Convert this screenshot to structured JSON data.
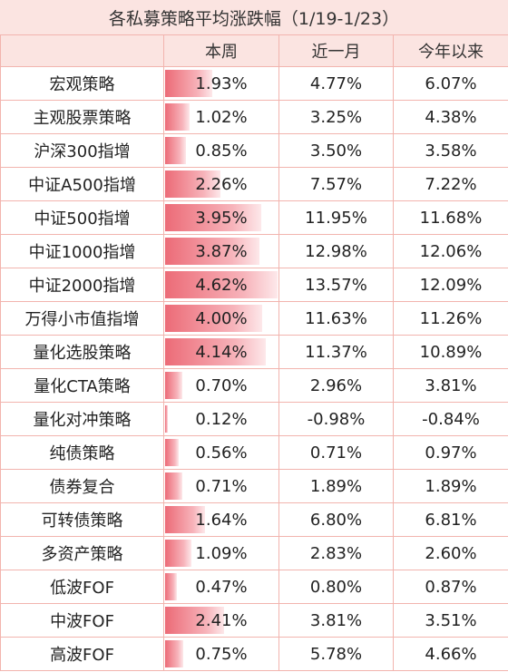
{
  "title": "各私募策略平均涨跌幅（1/19-1/23）",
  "colors": {
    "header_bg": "#fbe4e1",
    "border": "#f2b4ae",
    "bar_start": "#ec6b77",
    "bar_end": "#fde8ea"
  },
  "headers": [
    "",
    "本周",
    "近一月",
    "今年以来"
  ],
  "chart_data": {
    "type": "table",
    "title": "各私募策略平均涨跌幅（1/19-1/23）",
    "columns": [
      "",
      "本周",
      "近一月",
      "今年以来"
    ],
    "bar_column": "本周",
    "bar_max": 4.62,
    "rows": [
      {
        "name": "宏观策略",
        "week": "1.93%",
        "month": "4.77%",
        "ytd": "6.07%",
        "week_value": 1.93
      },
      {
        "name": "主观股票策略",
        "week": "1.02%",
        "month": "3.25%",
        "ytd": "4.38%",
        "week_value": 1.02
      },
      {
        "name": "沪深300指增",
        "week": "0.85%",
        "month": "3.50%",
        "ytd": "3.58%",
        "week_value": 0.85
      },
      {
        "name": "中证A500指增",
        "week": "2.26%",
        "month": "7.57%",
        "ytd": "7.22%",
        "week_value": 2.26
      },
      {
        "name": "中证500指增",
        "week": "3.95%",
        "month": "11.95%",
        "ytd": "11.68%",
        "week_value": 3.95
      },
      {
        "name": "中证1000指增",
        "week": "3.87%",
        "month": "12.98%",
        "ytd": "12.06%",
        "week_value": 3.87
      },
      {
        "name": "中证2000指增",
        "week": "4.62%",
        "month": "13.57%",
        "ytd": "12.09%",
        "week_value": 4.62
      },
      {
        "name": "万得小市值指增",
        "week": "4.00%",
        "month": "11.63%",
        "ytd": "11.26%",
        "week_value": 4.0
      },
      {
        "name": "量化选股策略",
        "week": "4.14%",
        "month": "11.37%",
        "ytd": "10.89%",
        "week_value": 4.14
      },
      {
        "name": "量化CTA策略",
        "week": "0.70%",
        "month": "2.96%",
        "ytd": "3.81%",
        "week_value": 0.7
      },
      {
        "name": "量化对冲策略",
        "week": "0.12%",
        "month": "-0.98%",
        "ytd": "-0.84%",
        "week_value": 0.12
      },
      {
        "name": "纯债策略",
        "week": "0.56%",
        "month": "0.71%",
        "ytd": "0.97%",
        "week_value": 0.56
      },
      {
        "name": "债券复合",
        "week": "0.71%",
        "month": "1.89%",
        "ytd": "1.89%",
        "week_value": 0.71
      },
      {
        "name": "可转债策略",
        "week": "1.64%",
        "month": "6.80%",
        "ytd": "6.81%",
        "week_value": 1.64
      },
      {
        "name": "多资产策略",
        "week": "1.09%",
        "month": "2.83%",
        "ytd": "2.60%",
        "week_value": 1.09
      },
      {
        "name": "低波FOF",
        "week": "0.47%",
        "month": "0.80%",
        "ytd": "0.87%",
        "week_value": 0.47
      },
      {
        "name": "中波FOF",
        "week": "2.41%",
        "month": "3.81%",
        "ytd": "3.51%",
        "week_value": 2.41
      },
      {
        "name": "高波FOF",
        "week": "0.75%",
        "month": "5.78%",
        "ytd": "4.66%",
        "week_value": 0.75
      }
    ]
  }
}
